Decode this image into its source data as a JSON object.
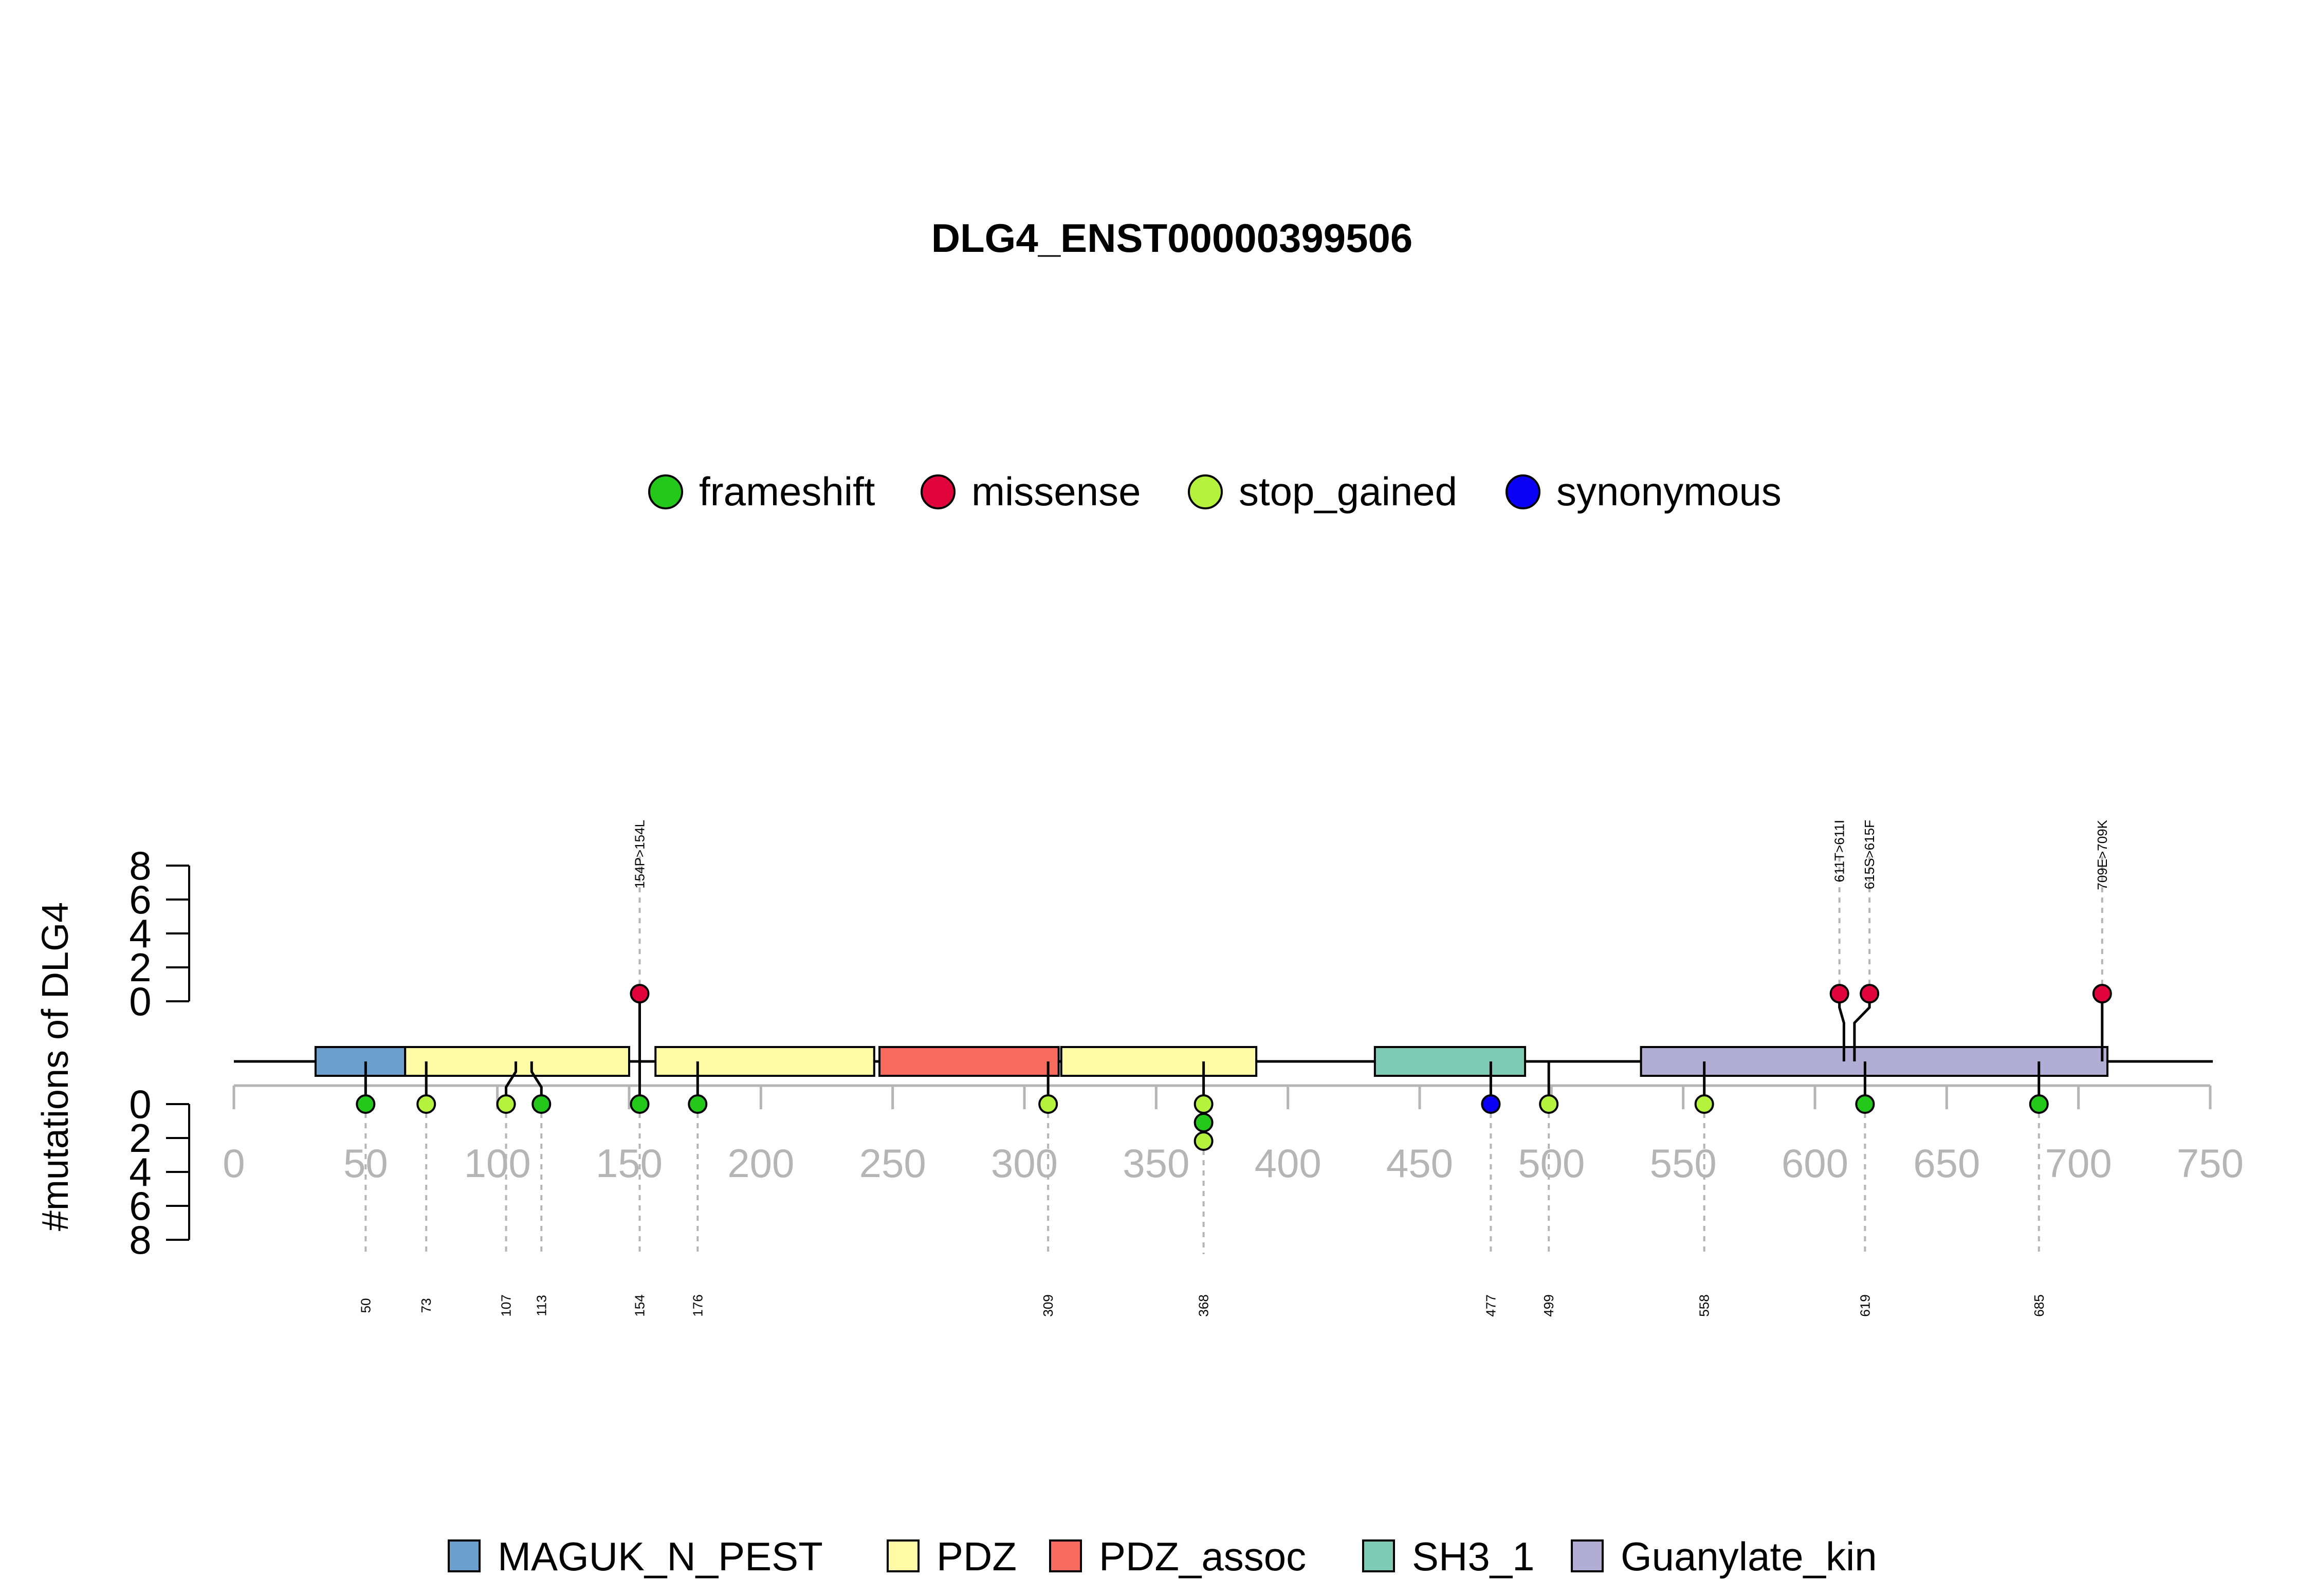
{
  "chart_data": {
    "type": "lollipop",
    "title": "DLG4_ENST00000399506",
    "ylabel": "#mutations of DLG4",
    "xlim": [
      0,
      750
    ],
    "x_ticks": [
      0,
      50,
      100,
      150,
      200,
      250,
      300,
      350,
      400,
      450,
      500,
      550,
      600,
      650,
      700,
      750
    ],
    "y_ticks_upper": [
      0,
      2,
      4,
      6,
      8
    ],
    "y_ticks_lower": [
      0,
      2,
      4,
      6,
      8
    ],
    "protein_length": 751,
    "mutation_legend": [
      {
        "name": "frameshift",
        "color": "#23C81A"
      },
      {
        "name": "missense",
        "color": "#E0033C"
      },
      {
        "name": "stop_gained",
        "color": "#B5F23C"
      },
      {
        "name": "synonymous",
        "color": "#0A00F5"
      }
    ],
    "domain_legend": [
      {
        "name": "MAGUK_N_PEST",
        "color": "#6C9FCB"
      },
      {
        "name": "PDZ",
        "color": "#FFFBA6"
      },
      {
        "name": "PDZ_assoc",
        "color": "#F76C5E"
      },
      {
        "name": "SH3_1",
        "color": "#7DCBB4"
      },
      {
        "name": "Guanylate_kin",
        "color": "#B2ADD4"
      }
    ],
    "domains": [
      {
        "name": "MAGUK_N_PEST",
        "start": 31,
        "end": 65
      },
      {
        "name": "PDZ",
        "start": 65,
        "end": 150
      },
      {
        "name": "PDZ",
        "start": 160,
        "end": 243
      },
      {
        "name": "PDZ_assoc",
        "start": 245,
        "end": 313
      },
      {
        "name": "PDZ",
        "start": 314,
        "end": 388
      },
      {
        "name": "SH3_1",
        "start": 433,
        "end": 490
      },
      {
        "name": "Guanylate_kin",
        "start": 534,
        "end": 711
      }
    ],
    "upper_mutations": [
      {
        "position": 154,
        "label": "154P>154L",
        "type": "missense",
        "count": 1
      },
      {
        "position": 611,
        "label": "611T>611I",
        "type": "missense",
        "count": 1
      },
      {
        "position": 615,
        "label": "615S>615F",
        "type": "missense",
        "count": 1
      },
      {
        "position": 709,
        "label": "709E>709K",
        "type": "missense",
        "count": 1
      }
    ],
    "lower_mutations": [
      {
        "position": 50,
        "label": "50",
        "types": [
          "frameshift"
        ]
      },
      {
        "position": 73,
        "label": "73",
        "types": [
          "stop_gained"
        ]
      },
      {
        "position": 107,
        "label": "107",
        "types": [
          "stop_gained"
        ]
      },
      {
        "position": 113,
        "label": "113",
        "types": [
          "frameshift"
        ]
      },
      {
        "position": 154,
        "label": "154",
        "types": [
          "frameshift"
        ]
      },
      {
        "position": 176,
        "label": "176",
        "types": [
          "frameshift"
        ]
      },
      {
        "position": 309,
        "label": "309",
        "types": [
          "stop_gained"
        ]
      },
      {
        "position": 368,
        "label": "368",
        "types": [
          "stop_gained",
          "frameshift",
          "stop_gained"
        ]
      },
      {
        "position": 477,
        "label": "477",
        "types": [
          "synonymous"
        ]
      },
      {
        "position": 499,
        "label": "499",
        "types": [
          "stop_gained"
        ]
      },
      {
        "position": 558,
        "label": "558",
        "types": [
          "stop_gained"
        ]
      },
      {
        "position": 619,
        "label": "619",
        "types": [
          "frameshift"
        ]
      },
      {
        "position": 685,
        "label": "685",
        "types": [
          "frameshift"
        ]
      }
    ]
  }
}
